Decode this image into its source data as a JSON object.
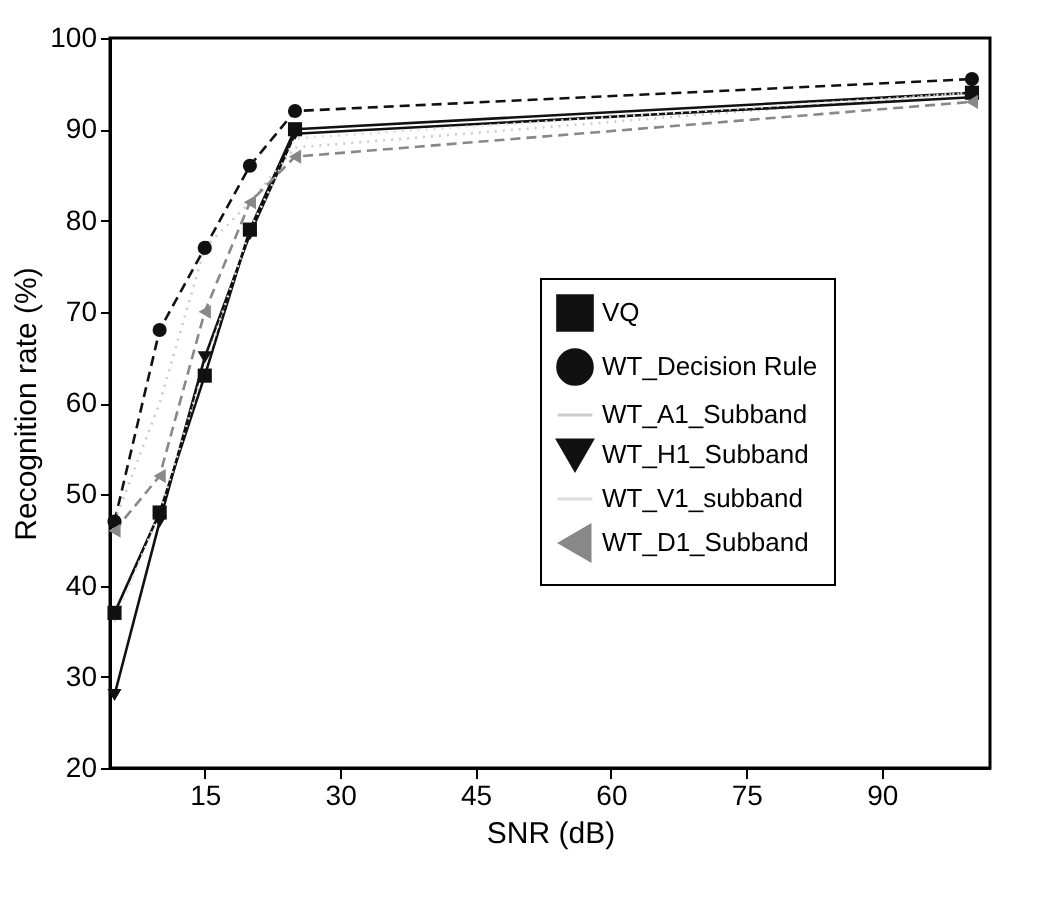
{
  "chart_data": {
    "type": "line",
    "xlabel": "SNR (dB)",
    "ylabel": "Recognition rate (%)",
    "x": [
      5,
      10,
      15,
      20,
      25,
      100
    ],
    "xlim": [
      4.5,
      102
    ],
    "xticks": [
      15,
      30,
      45,
      60,
      75,
      90
    ],
    "ylim": [
      20,
      100
    ],
    "yticks": [
      20,
      30,
      40,
      50,
      60,
      70,
      80,
      90,
      100
    ],
    "grid": false,
    "legend": "right",
    "series": [
      {
        "name": "VQ",
        "color": "#111111",
        "marker": "square",
        "line_style": "solid",
        "values": [
          37,
          48,
          63,
          79,
          90,
          94
        ]
      },
      {
        "name": "WT_Decision Rule",
        "color": "#111111",
        "marker": "circle",
        "line_style": "dashed",
        "values": [
          47,
          68,
          77,
          86,
          92,
          95.5
        ]
      },
      {
        "name": "WT_A1_Subband",
        "color": "#cccccc",
        "marker": "none",
        "line_style": "dotted",
        "values": [
          47,
          60,
          77,
          82,
          88,
          94
        ]
      },
      {
        "name": "WT_H1_Subband",
        "color": "#111111",
        "marker": "triangle",
        "line_style": "solid",
        "values": [
          28,
          47,
          65,
          78.5,
          89.5,
          93.5
        ]
      },
      {
        "name": "WT_V1_subband",
        "color": "#dddddd",
        "marker": "none",
        "line_style": "dotted",
        "values": [
          36,
          48,
          64,
          79,
          89,
          94
        ]
      },
      {
        "name": "WT_D1_Subband",
        "color": "#888888",
        "marker": "triangle",
        "line_style": "dashed",
        "values": [
          46,
          52,
          70,
          82,
          87,
          93
        ]
      }
    ]
  }
}
